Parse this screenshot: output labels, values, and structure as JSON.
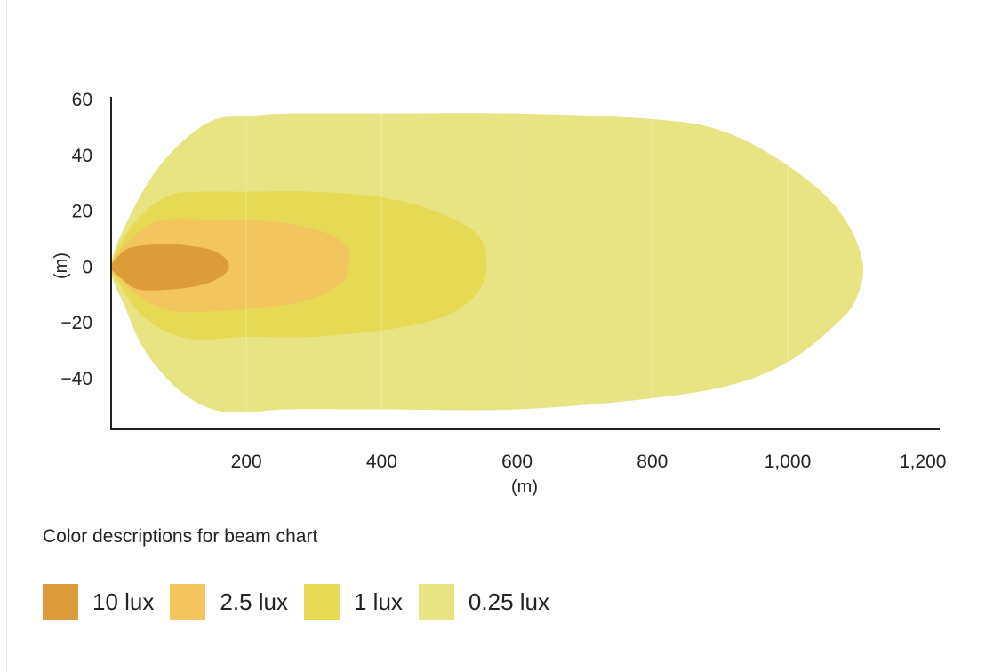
{
  "chart_data": {
    "type": "area",
    "title": "",
    "xlabel": "(m)",
    "ylabel": "(m)",
    "xlim": [
      0,
      1240
    ],
    "ylim": [
      -58,
      60
    ],
    "x_ticks": [
      {
        "value": 200,
        "label": "200"
      },
      {
        "value": 400,
        "label": "400"
      },
      {
        "value": 600,
        "label": "600"
      },
      {
        "value": 800,
        "label": "800"
      },
      {
        "value": 1000,
        "label": "1,000"
      },
      {
        "value": 1200,
        "label": "1,200"
      }
    ],
    "y_ticks": [
      {
        "value": 60,
        "label": "60"
      },
      {
        "value": 40,
        "label": "40"
      },
      {
        "value": 20,
        "label": "20"
      },
      {
        "value": 0,
        "label": "0"
      },
      {
        "value": -20,
        "label": "−20"
      },
      {
        "value": -40,
        "label": "−40"
      }
    ],
    "grid": true,
    "series": [
      {
        "name": "0.25 lux",
        "color": "#e8e484",
        "points": [
          [
            0,
            0
          ],
          [
            25,
            17
          ],
          [
            65,
            34
          ],
          [
            110,
            46
          ],
          [
            155,
            53
          ],
          [
            200,
            54
          ],
          [
            260,
            55
          ],
          [
            400,
            55
          ],
          [
            600,
            55
          ],
          [
            800,
            53
          ],
          [
            900,
            49
          ],
          [
            990,
            38
          ],
          [
            1070,
            22
          ],
          [
            1110,
            3
          ],
          [
            1100,
            -12
          ],
          [
            1060,
            -23
          ],
          [
            1000,
            -34
          ],
          [
            920,
            -42
          ],
          [
            800,
            -47
          ],
          [
            600,
            -51
          ],
          [
            400,
            -51
          ],
          [
            260,
            -51
          ],
          [
            200,
            -52
          ],
          [
            150,
            -51
          ],
          [
            100,
            -44
          ],
          [
            50,
            -30
          ],
          [
            20,
            -14
          ]
        ]
      },
      {
        "name": "1 lux",
        "color": "#e6da54",
        "points": [
          [
            0,
            0
          ],
          [
            20,
            11
          ],
          [
            50,
            20
          ],
          [
            90,
            26
          ],
          [
            130,
            27
          ],
          [
            200,
            27
          ],
          [
            300,
            27
          ],
          [
            400,
            25
          ],
          [
            480,
            20
          ],
          [
            540,
            12
          ],
          [
            555,
            2
          ],
          [
            545,
            -8
          ],
          [
            500,
            -17
          ],
          [
            420,
            -22
          ],
          [
            300,
            -25
          ],
          [
            200,
            -25
          ],
          [
            130,
            -26
          ],
          [
            80,
            -23
          ],
          [
            40,
            -16
          ],
          [
            15,
            -7
          ]
        ]
      },
      {
        "name": "2.5 lux",
        "color": "#f2c55e",
        "points": [
          [
            0,
            0
          ],
          [
            20,
            8
          ],
          [
            50,
            14
          ],
          [
            80,
            17
          ],
          [
            150,
            17
          ],
          [
            250,
            16
          ],
          [
            320,
            12
          ],
          [
            350,
            7
          ],
          [
            352,
            1
          ],
          [
            340,
            -6
          ],
          [
            290,
            -12
          ],
          [
            200,
            -15
          ],
          [
            100,
            -16
          ],
          [
            50,
            -12
          ],
          [
            20,
            -6
          ]
        ]
      },
      {
        "name": "10 lux",
        "color": "#dd9c3a",
        "points": [
          [
            0,
            0
          ],
          [
            15,
            5
          ],
          [
            30,
            7
          ],
          [
            60,
            8
          ],
          [
            100,
            8
          ],
          [
            150,
            6
          ],
          [
            172,
            2
          ],
          [
            170,
            -2
          ],
          [
            140,
            -6
          ],
          [
            90,
            -8
          ],
          [
            40,
            -8
          ],
          [
            15,
            -4
          ]
        ]
      }
    ]
  },
  "legend": {
    "title": "Color descriptions for beam chart",
    "items": [
      {
        "label": "10 lux",
        "color": "#dd9c3a"
      },
      {
        "label": "2.5 lux",
        "color": "#f2c55e"
      },
      {
        "label": "1 lux",
        "color": "#e6da54"
      },
      {
        "label": "0.25 lux",
        "color": "#e8e484"
      }
    ]
  }
}
